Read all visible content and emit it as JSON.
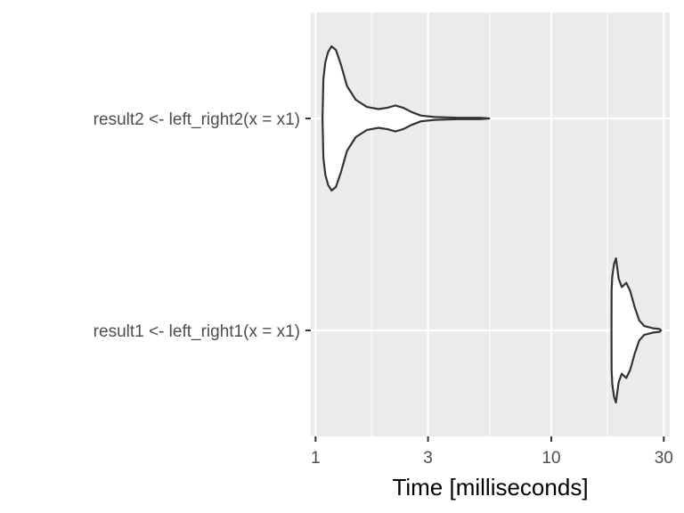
{
  "chart_data": {
    "type": "violin",
    "title": "",
    "xlabel": "Time [milliseconds]",
    "ylabel": "",
    "x_scale": "log10",
    "xlim": [
      0.955,
      31.8
    ],
    "x_ticks": [
      1,
      3,
      10,
      30
    ],
    "x_tick_labels": [
      "1",
      "3",
      "10",
      "30"
    ],
    "x_minor_gridlines": [
      1.73,
      5.48,
      17.3
    ],
    "grid": true,
    "categories": [
      "result2 <- left_right2(x = x1)",
      "result1 <- left_right1(x = x1)"
    ],
    "series": [
      {
        "category": "result2 <- left_right2(x = x1)",
        "profile": [
          [
            1.07,
            0.0
          ],
          [
            1.08,
            0.55
          ],
          [
            1.1,
            0.78
          ],
          [
            1.13,
            0.92
          ],
          [
            1.17,
            1.0
          ],
          [
            1.22,
            0.95
          ],
          [
            1.28,
            0.75
          ],
          [
            1.36,
            0.45
          ],
          [
            1.48,
            0.26
          ],
          [
            1.65,
            0.16
          ],
          [
            1.85,
            0.13
          ],
          [
            2.02,
            0.15
          ],
          [
            2.18,
            0.18
          ],
          [
            2.35,
            0.15
          ],
          [
            2.55,
            0.09
          ],
          [
            2.8,
            0.04
          ],
          [
            3.2,
            0.02
          ],
          [
            4.0,
            0.01
          ],
          [
            5.0,
            0.01
          ],
          [
            5.45,
            0.0
          ]
        ]
      },
      {
        "category": "result1 <- left_right1(x = x1)",
        "profile": [
          [
            18.0,
            0.0
          ],
          [
            18.02,
            0.55
          ],
          [
            18.15,
            0.75
          ],
          [
            18.45,
            0.92
          ],
          [
            18.8,
            1.0
          ],
          [
            19.3,
            0.72
          ],
          [
            19.9,
            0.6
          ],
          [
            20.8,
            0.66
          ],
          [
            21.6,
            0.55
          ],
          [
            22.6,
            0.32
          ],
          [
            23.6,
            0.14
          ],
          [
            24.8,
            0.06
          ],
          [
            27.0,
            0.03
          ],
          [
            28.8,
            0.02
          ],
          [
            29.2,
            0.0
          ]
        ]
      }
    ]
  }
}
